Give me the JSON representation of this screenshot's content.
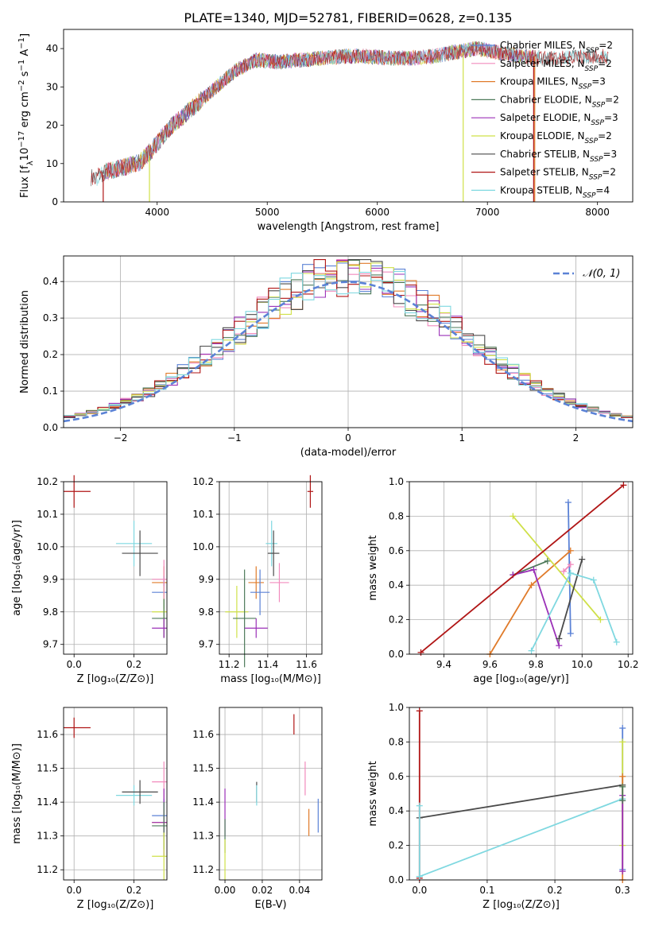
{
  "figure_title": "PLATE=1340, MJD=52781, FIBERID=0628, z=0.135",
  "legend_entries": [
    {
      "label": "Chabrier MILES, N",
      "sub": "SSP",
      "tail": "=2",
      "color": "#5b82d6"
    },
    {
      "label": "Salpeter MILES, N",
      "sub": "SSP",
      "tail": "=2",
      "color": "#f28bbd"
    },
    {
      "label": "Kroupa MILES, N",
      "sub": "SSP",
      "tail": "=3",
      "color": "#e07b2a"
    },
    {
      "label": "Chabrier ELODIE, N",
      "sub": "SSP",
      "tail": "=2",
      "color": "#4e7a5a"
    },
    {
      "label": "Salpeter ELODIE, N",
      "sub": "SSP",
      "tail": "=3",
      "color": "#9b30b8"
    },
    {
      "label": "Kroupa ELODIE, N",
      "sub": "SSP",
      "tail": "=2",
      "color": "#cfe048"
    },
    {
      "label": "Chabrier STELIB, N",
      "sub": "SSP",
      "tail": "=3",
      "color": "#4a4a4a"
    },
    {
      "label": "Salpeter STELIB, N",
      "sub": "SSP",
      "tail": "=2",
      "color": "#b01515"
    },
    {
      "label": "Kroupa STELIB, N",
      "sub": "SSP",
      "tail": "=4",
      "color": "#7fd8e0"
    }
  ],
  "chart_data": [
    {
      "id": "spectrum",
      "type": "line",
      "xlabel": "wavelength [Angstrom, rest frame]",
      "ylabel_parts": [
        "Flux [f",
        "λ",
        "10",
        "−17",
        " erg cm",
        "−2",
        " s",
        "−1",
        " A",
        "−1",
        "]"
      ],
      "xlim": [
        3150,
        8320
      ],
      "ylim": [
        0,
        45
      ],
      "xticks": [
        "4000",
        "5000",
        "6000",
        "7000",
        "8000"
      ],
      "yticks": [
        "0",
        "10",
        "20",
        "30",
        "40"
      ],
      "continuum": {
        "x": [
          3450,
          3550,
          3700,
          3850,
          3950,
          4100,
          4300,
          4500,
          4700,
          4900,
          5100,
          5300,
          5500,
          5700,
          5900,
          6100,
          6300,
          6500,
          6700,
          6900,
          7100,
          7300,
          7500,
          7700,
          7900,
          8100
        ],
        "y": [
          6.5,
          8.0,
          9.0,
          10.5,
          13.5,
          19,
          24,
          29,
          34,
          37,
          36.5,
          37,
          37.5,
          38,
          38,
          37.5,
          37.5,
          38,
          39,
          40,
          39,
          38,
          37.5,
          37.5,
          38,
          38
        ]
      },
      "drops": [
        {
          "series": "Kroupa ELODIE",
          "x": 6780,
          "from": 39,
          "to": 0
        },
        {
          "series": "Salpeter STELIB",
          "x": 7420,
          "from": 38,
          "to": 0
        },
        {
          "series": "Kroupa MILES",
          "x": 7430,
          "from": 38,
          "to": 0
        },
        {
          "series": "Salpeter STELIB",
          "x": 3510,
          "from": 7,
          "to": 0
        },
        {
          "series": "Kroupa ELODIE",
          "x": 3930,
          "from": 12,
          "to": 0
        }
      ]
    },
    {
      "id": "residuals",
      "type": "histogram",
      "xlabel": "(data-model)/error",
      "ylabel": "Normed distribution",
      "xlim": [
        -2.5,
        2.5
      ],
      "ylim": [
        0,
        0.47
      ],
      "xticks": [
        "−2",
        "−1",
        "0",
        "1",
        "2"
      ],
      "yticks": [
        "0.0",
        "0.1",
        "0.2",
        "0.3",
        "0.4"
      ],
      "legend_label": "𝒩(0, 1)",
      "bin_width": 0.1,
      "bin_start": -2.5
    },
    {
      "id": "age_vs_Z",
      "type": "errorbar",
      "xlabel": "Z [log₁₀(Z/Z⊙)]",
      "ylabel": "age  [log₁₀(age/yr)]",
      "xlim": [
        -0.035,
        0.31
      ],
      "ylim": [
        9.67,
        10.2
      ],
      "xticks": [
        "0.0",
        "0.2"
      ],
      "yticks": [
        "9.7",
        "9.8",
        "9.9",
        "10.0",
        "10.1",
        "10.2"
      ],
      "points": [
        {
          "series": "Salpeter STELIB",
          "x": 0.0,
          "y": 10.17,
          "ex": 0.055,
          "ey": 0.05
        },
        {
          "series": "Kroupa STELIB",
          "x": 0.2,
          "y": 10.01,
          "ex": 0.06,
          "ey": 0.07
        },
        {
          "series": "Chabrier STELIB",
          "x": 0.22,
          "y": 9.98,
          "ex": 0.06,
          "ey": 0.07
        },
        {
          "series": "Kroupa MILES",
          "x": 0.3,
          "y": 9.89,
          "ex": 0.04,
          "ey": 0.05
        },
        {
          "series": "Chabrier MILES",
          "x": 0.3,
          "y": 9.86,
          "ex": 0.04,
          "ey": 0.05
        },
        {
          "series": "Kroupa ELODIE",
          "x": 0.3,
          "y": 9.8,
          "ex": 0.04,
          "ey": 0.08
        },
        {
          "series": "Chabrier ELODIE",
          "x": 0.3,
          "y": 9.78,
          "ex": 0.04,
          "ey": 0.06
        },
        {
          "series": "Salpeter ELODIE",
          "x": 0.3,
          "y": 9.75,
          "ex": 0.04,
          "ey": 0.03
        },
        {
          "series": "Salpeter MILES",
          "x": 0.3,
          "y": 9.9,
          "ex": 0.04,
          "ey": 0.06
        }
      ]
    },
    {
      "id": "age_vs_mass",
      "type": "errorbar",
      "xlabel": "mass [log₁₀(M/M⊙)]",
      "ylabel": "",
      "xlim": [
        11.15,
        11.68
      ],
      "ylim": [
        9.67,
        10.2
      ],
      "xticks": [
        "11.2",
        "11.4",
        "11.6"
      ],
      "yticks": [
        "9.7",
        "9.8",
        "9.9",
        "10.0",
        "10.1",
        "10.2"
      ],
      "points": [
        {
          "series": "Salpeter STELIB",
          "x": 11.62,
          "y": 10.17,
          "ex": 0.015,
          "ey": 0.05
        },
        {
          "series": "Kroupa STELIB",
          "x": 11.42,
          "y": 10.01,
          "ex": 0.03,
          "ey": 0.07
        },
        {
          "series": "Chabrier STELIB",
          "x": 11.43,
          "y": 9.98,
          "ex": 0.03,
          "ey": 0.07
        },
        {
          "series": "Salpeter MILES",
          "x": 11.46,
          "y": 9.89,
          "ex": 0.05,
          "ey": 0.06
        },
        {
          "series": "Kroupa MILES",
          "x": 11.34,
          "y": 9.89,
          "ex": 0.04,
          "ey": 0.05
        },
        {
          "series": "Chabrier MILES",
          "x": 11.36,
          "y": 9.86,
          "ex": 0.05,
          "ey": 0.07
        },
        {
          "series": "Kroupa ELODIE",
          "x": 11.24,
          "y": 9.8,
          "ex": 0.06,
          "ey": 0.08
        },
        {
          "series": "Chabrier ELODIE",
          "x": 11.28,
          "y": 9.78,
          "ex": 0.06,
          "ey": 0.15
        },
        {
          "series": "Salpeter ELODIE",
          "x": 11.34,
          "y": 9.75,
          "ex": 0.06,
          "ey": 0.03
        }
      ]
    },
    {
      "id": "massweight_vs_age",
      "type": "line",
      "xlabel": "age  [log₁₀(age/yr)]",
      "ylabel": "mass weight",
      "xlim": [
        9.25,
        10.22
      ],
      "ylim": [
        0,
        1
      ],
      "xticks": [
        "9.4",
        "9.6",
        "9.8",
        "10.0",
        "10.2"
      ],
      "yticks": [
        "0.0",
        "0.2",
        "0.4",
        "0.6",
        "0.8",
        "1.0"
      ],
      "series": [
        {
          "name": "Chabrier MILES",
          "x": [
            9.94,
            9.95
          ],
          "y": [
            0.88,
            0.12
          ]
        },
        {
          "name": "Salpeter MILES",
          "x": [
            9.92,
            9.95
          ],
          "y": [
            0.48,
            0.52
          ]
        },
        {
          "name": "Kroupa MILES",
          "x": [
            9.6,
            9.78,
            9.95
          ],
          "y": [
            0.0,
            0.4,
            0.6
          ]
        },
        {
          "name": "Chabrier ELODIE",
          "x": [
            9.7,
            9.85
          ],
          "y": [
            0.46,
            0.54
          ]
        },
        {
          "name": "Salpeter ELODIE",
          "x": [
            9.7,
            9.79,
            9.9
          ],
          "y": [
            0.46,
            0.49,
            0.05
          ]
        },
        {
          "name": "Kroupa ELODIE",
          "x": [
            9.7,
            10.08
          ],
          "y": [
            0.8,
            0.2
          ]
        },
        {
          "name": "Chabrier STELIB",
          "x": [
            9.9,
            10.0
          ],
          "y": [
            0.09,
            0.55
          ]
        },
        {
          "name": "Salpeter STELIB",
          "x": [
            9.3,
            10.18
          ],
          "y": [
            0.01,
            0.98
          ]
        },
        {
          "name": "Kroupa STELIB",
          "x": [
            9.78,
            9.95,
            10.05,
            10.15
          ],
          "y": [
            0.02,
            0.47,
            0.43,
            0.07
          ]
        }
      ]
    },
    {
      "id": "mass_vs_Z",
      "type": "errorbar",
      "xlabel": "Z [log₁₀(Z/Z⊙)]",
      "ylabel": "mass [log₁₀(M/M⊙)]",
      "xlim": [
        -0.035,
        0.31
      ],
      "ylim": [
        11.17,
        11.68
      ],
      "xticks": [
        "0.0",
        "0.2"
      ],
      "yticks": [
        "11.2",
        "11.3",
        "11.4",
        "11.5",
        "11.6"
      ],
      "points": [
        {
          "series": "Salpeter STELIB",
          "x": 0.0,
          "y": 11.62,
          "ex": 0.055,
          "ey": 0.03
        },
        {
          "series": "Kroupa STELIB",
          "x": 0.2,
          "y": 11.42,
          "ex": 0.06,
          "ey": 0.03
        },
        {
          "series": "Chabrier STELIB",
          "x": 0.22,
          "y": 11.43,
          "ex": 0.06,
          "ey": 0.035
        },
        {
          "series": "Salpeter MILES",
          "x": 0.3,
          "y": 11.46,
          "ex": 0.04,
          "ey": 0.06
        },
        {
          "series": "Chabrier MILES",
          "x": 0.3,
          "y": 11.36,
          "ex": 0.04,
          "ey": 0.05
        },
        {
          "series": "Kroupa MILES",
          "x": 0.3,
          "y": 11.34,
          "ex": 0.04,
          "ey": 0.04
        },
        {
          "series": "Salpeter ELODIE",
          "x": 0.3,
          "y": 11.34,
          "ex": 0.04,
          "ey": 0.1
        },
        {
          "series": "Chabrier ELODIE",
          "x": 0.3,
          "y": 11.33,
          "ex": 0.04,
          "ey": 0.07
        },
        {
          "series": "Kroupa ELODIE",
          "x": 0.3,
          "y": 11.24,
          "ex": 0.04,
          "ey": 0.07
        }
      ]
    },
    {
      "id": "mass_vs_ebv",
      "type": "errorbar",
      "xlabel": "E(B-V)",
      "ylabel": "",
      "xlim": [
        -0.003,
        0.052
      ],
      "ylim": [
        11.17,
        11.68
      ],
      "xticks": [
        "0.00",
        "0.02",
        "0.04"
      ],
      "yticks": [
        "11.2",
        "11.3",
        "11.4",
        "11.5",
        "11.6"
      ],
      "points": [
        {
          "series": "Salpeter STELIB",
          "x": 0.037,
          "y": 11.63,
          "ex": 0.0,
          "ey": 0.03
        },
        {
          "series": "Salpeter MILES",
          "x": 0.043,
          "y": 11.47,
          "ex": 0.0,
          "ey": 0.05
        },
        {
          "series": "Chabrier STELIB",
          "x": 0.017,
          "y": 11.43,
          "ex": 0.0,
          "ey": 0.03
        },
        {
          "series": "Kroupa STELIB",
          "x": 0.017,
          "y": 11.42,
          "ex": 0.0,
          "ey": 0.03
        },
        {
          "series": "Salpeter ELODIE",
          "x": 0.0,
          "y": 11.37,
          "ex": 0.0,
          "ey": 0.07
        },
        {
          "series": "Chabrier MILES",
          "x": 0.05,
          "y": 11.36,
          "ex": 0.0,
          "ey": 0.05
        },
        {
          "series": "Kroupa MILES",
          "x": 0.045,
          "y": 11.34,
          "ex": 0.0,
          "ey": 0.04
        },
        {
          "series": "Chabrier ELODIE",
          "x": 0.0,
          "y": 11.3,
          "ex": 0.0,
          "ey": 0.05
        },
        {
          "series": "Kroupa ELODIE",
          "x": 0.0,
          "y": 11.23,
          "ex": 0.0,
          "ey": 0.06
        }
      ]
    },
    {
      "id": "massweight_vs_Z",
      "type": "line",
      "xlabel": "Z [log₁₀(Z/Z⊙)]",
      "ylabel": "mass weight",
      "xlim": [
        -0.015,
        0.315
      ],
      "ylim": [
        0,
        1
      ],
      "xticks": [
        "0.0",
        "0.1",
        "0.2",
        "0.3"
      ],
      "yticks": [
        "0.0",
        "0.2",
        "0.4",
        "0.6",
        "0.8",
        "1.0"
      ],
      "series": [
        {
          "name": "Salpeter STELIB",
          "x": [
            0.0,
            0.0
          ],
          "y": [
            0.98,
            0.01
          ]
        },
        {
          "name": "Chabrier STELIB",
          "x": [
            0.0,
            0.3
          ],
          "y": [
            0.36,
            0.55
          ]
        },
        {
          "name": "Kroupa STELIB",
          "x": [
            0.0,
            0.3
          ],
          "y": [
            0.02,
            0.47
          ]
        },
        {
          "name": "Kroupa STELIB",
          "x": [
            0.0,
            0.0
          ],
          "y": [
            0.43,
            0.02
          ]
        },
        {
          "name": "Chabrier MILES",
          "x": [
            0.3,
            0.3
          ],
          "y": [
            0.88,
            0.06
          ]
        },
        {
          "name": "Kroupa ELODIE",
          "x": [
            0.3,
            0.3
          ],
          "y": [
            0.8,
            0.2
          ]
        },
        {
          "name": "Kroupa MILES",
          "x": [
            0.3,
            0.3
          ],
          "y": [
            0.6,
            0.0
          ]
        },
        {
          "name": "Salpeter ELODIE",
          "x": [
            0.3,
            0.3
          ],
          "y": [
            0.49,
            0.05
          ]
        },
        {
          "name": "Chabrier ELODIE",
          "x": [
            0.3,
            0.3
          ],
          "y": [
            0.54,
            0.46
          ]
        }
      ]
    }
  ]
}
